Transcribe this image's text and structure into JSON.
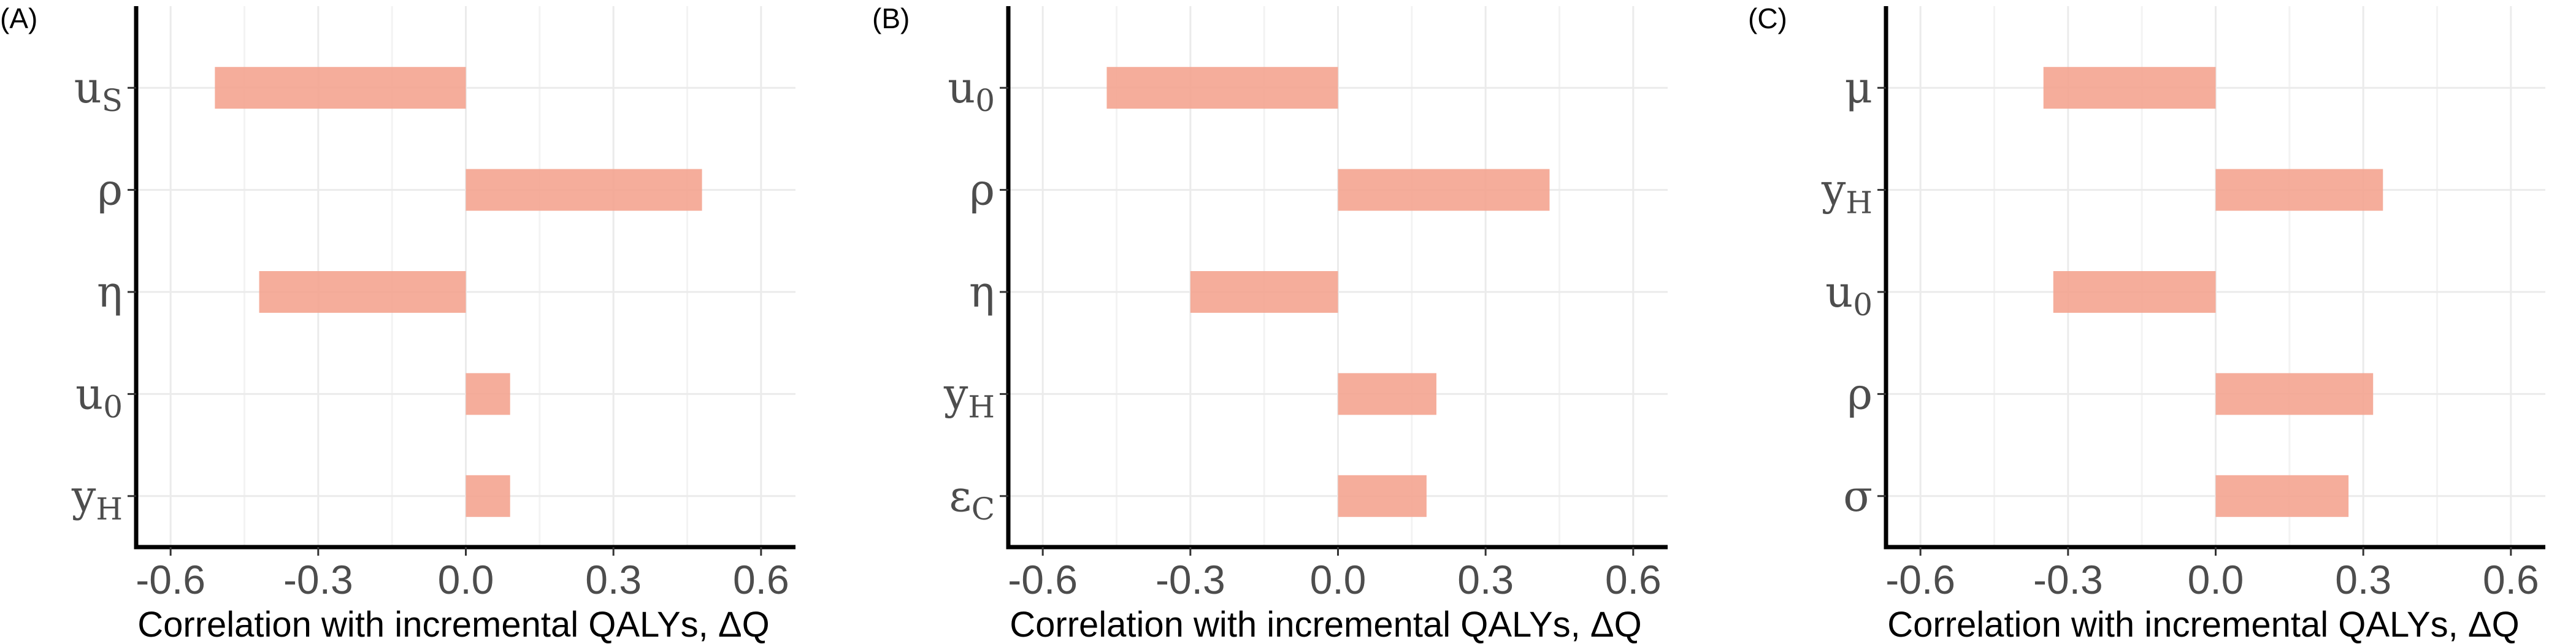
{
  "chart_data": [
    {
      "type": "bar",
      "orientation": "horizontal",
      "panel": "(A)",
      "categories": [
        {
          "base": "u",
          "sub": "S"
        },
        {
          "base": "ρ",
          "sub": ""
        },
        {
          "base": "η",
          "sub": ""
        },
        {
          "base": "u",
          "sub": "0"
        },
        {
          "base": "y",
          "sub": "H"
        }
      ],
      "values": [
        -0.51,
        0.48,
        -0.42,
        0.09,
        0.09
      ],
      "xlabel": "Correlation with incremental QALYs, ΔQ",
      "ylabel": "",
      "xlim": [
        -0.67,
        0.67
      ],
      "xticks": [
        -0.6,
        -0.3,
        0.0,
        0.3,
        0.6
      ],
      "xtick_labels": [
        "-0.6",
        "-0.3",
        "0.0",
        "0.3",
        "0.6"
      ],
      "bar_color": "#f4a490",
      "grid": true,
      "legend": "none"
    },
    {
      "type": "bar",
      "orientation": "horizontal",
      "panel": "(B)",
      "categories": [
        {
          "base": "u",
          "sub": "0"
        },
        {
          "base": "ρ",
          "sub": ""
        },
        {
          "base": "η",
          "sub": ""
        },
        {
          "base": "y",
          "sub": "H"
        },
        {
          "base": "ε",
          "sub": "C"
        }
      ],
      "values": [
        -0.47,
        0.43,
        -0.3,
        0.2,
        0.18
      ],
      "xlabel": "Correlation with incremental QALYs, ΔQ",
      "ylabel": "",
      "xlim": [
        -0.67,
        0.67
      ],
      "xticks": [
        -0.6,
        -0.3,
        0.0,
        0.3,
        0.6
      ],
      "xtick_labels": [
        "-0.6",
        "-0.3",
        "0.0",
        "0.3",
        "0.6"
      ],
      "bar_color": "#f4a490",
      "grid": true,
      "legend": "none"
    },
    {
      "type": "bar",
      "orientation": "horizontal",
      "panel": "(C)",
      "categories": [
        {
          "base": "μ",
          "sub": ""
        },
        {
          "base": "y",
          "sub": "H"
        },
        {
          "base": "u",
          "sub": "0"
        },
        {
          "base": "ρ",
          "sub": ""
        },
        {
          "base": "σ",
          "sub": ""
        }
      ],
      "values": [
        -0.35,
        0.34,
        -0.33,
        0.32,
        0.27
      ],
      "xlabel": "Correlation with incremental QALYs, ΔQ",
      "ylabel": "",
      "xlim": [
        -0.67,
        0.67
      ],
      "xticks": [
        -0.6,
        -0.3,
        0.0,
        0.3,
        0.6
      ],
      "xtick_labels": [
        "-0.6",
        "-0.3",
        "0.0",
        "0.3",
        "0.6"
      ],
      "bar_color": "#f4a490",
      "grid": true,
      "legend": "none"
    }
  ]
}
